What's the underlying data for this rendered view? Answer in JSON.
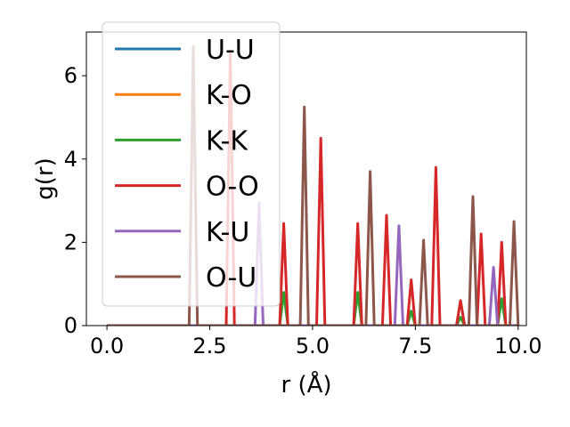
{
  "chart_data": {
    "type": "line",
    "title": "",
    "xlabel": "r (Å)",
    "ylabel": "g(r)",
    "xlim": [
      -0.5,
      10.2
    ],
    "ylim": [
      0,
      7.05
    ],
    "xticks": [
      0.0,
      2.5,
      5.0,
      7.5,
      10.0
    ],
    "xtick_labels": [
      "0.0",
      "2.5",
      "5.0",
      "7.5",
      "10.0"
    ],
    "yticks": [
      0,
      2,
      4,
      6
    ],
    "ytick_labels": [
      "0",
      "2",
      "4",
      "6"
    ],
    "grid": false,
    "legend": {
      "position": "top-left"
    },
    "series": [
      {
        "name": "U-U",
        "color": "#1f77b4",
        "peaks": []
      },
      {
        "name": "K-O",
        "color": "#ff7f0e",
        "peaks": []
      },
      {
        "name": "K-K",
        "color": "#2ca02c",
        "peaks": [
          [
            4.3,
            0.8
          ],
          [
            6.1,
            0.8
          ],
          [
            7.4,
            0.35
          ],
          [
            8.6,
            0.2
          ],
          [
            9.6,
            0.65
          ]
        ]
      },
      {
        "name": "O-O",
        "color": "#d62728",
        "peaks": [
          [
            3.0,
            6.6
          ],
          [
            4.3,
            2.45
          ],
          [
            5.2,
            4.5
          ],
          [
            6.1,
            2.45
          ],
          [
            6.8,
            2.65
          ],
          [
            7.4,
            1.1
          ],
          [
            8.0,
            3.8
          ],
          [
            8.6,
            0.6
          ],
          [
            9.1,
            2.2
          ],
          [
            9.6,
            2.0
          ]
        ]
      },
      {
        "name": "K-U",
        "color": "#9467bd",
        "peaks": [
          [
            3.7,
            2.95
          ],
          [
            7.1,
            2.4
          ],
          [
            9.4,
            1.4
          ]
        ]
      },
      {
        "name": "O-U",
        "color": "#8c564b",
        "peaks": [
          [
            2.1,
            6.7
          ],
          [
            4.8,
            5.25
          ],
          [
            6.4,
            3.7
          ],
          [
            7.7,
            2.05
          ],
          [
            8.9,
            3.1
          ],
          [
            9.9,
            2.5
          ]
        ]
      }
    ]
  }
}
